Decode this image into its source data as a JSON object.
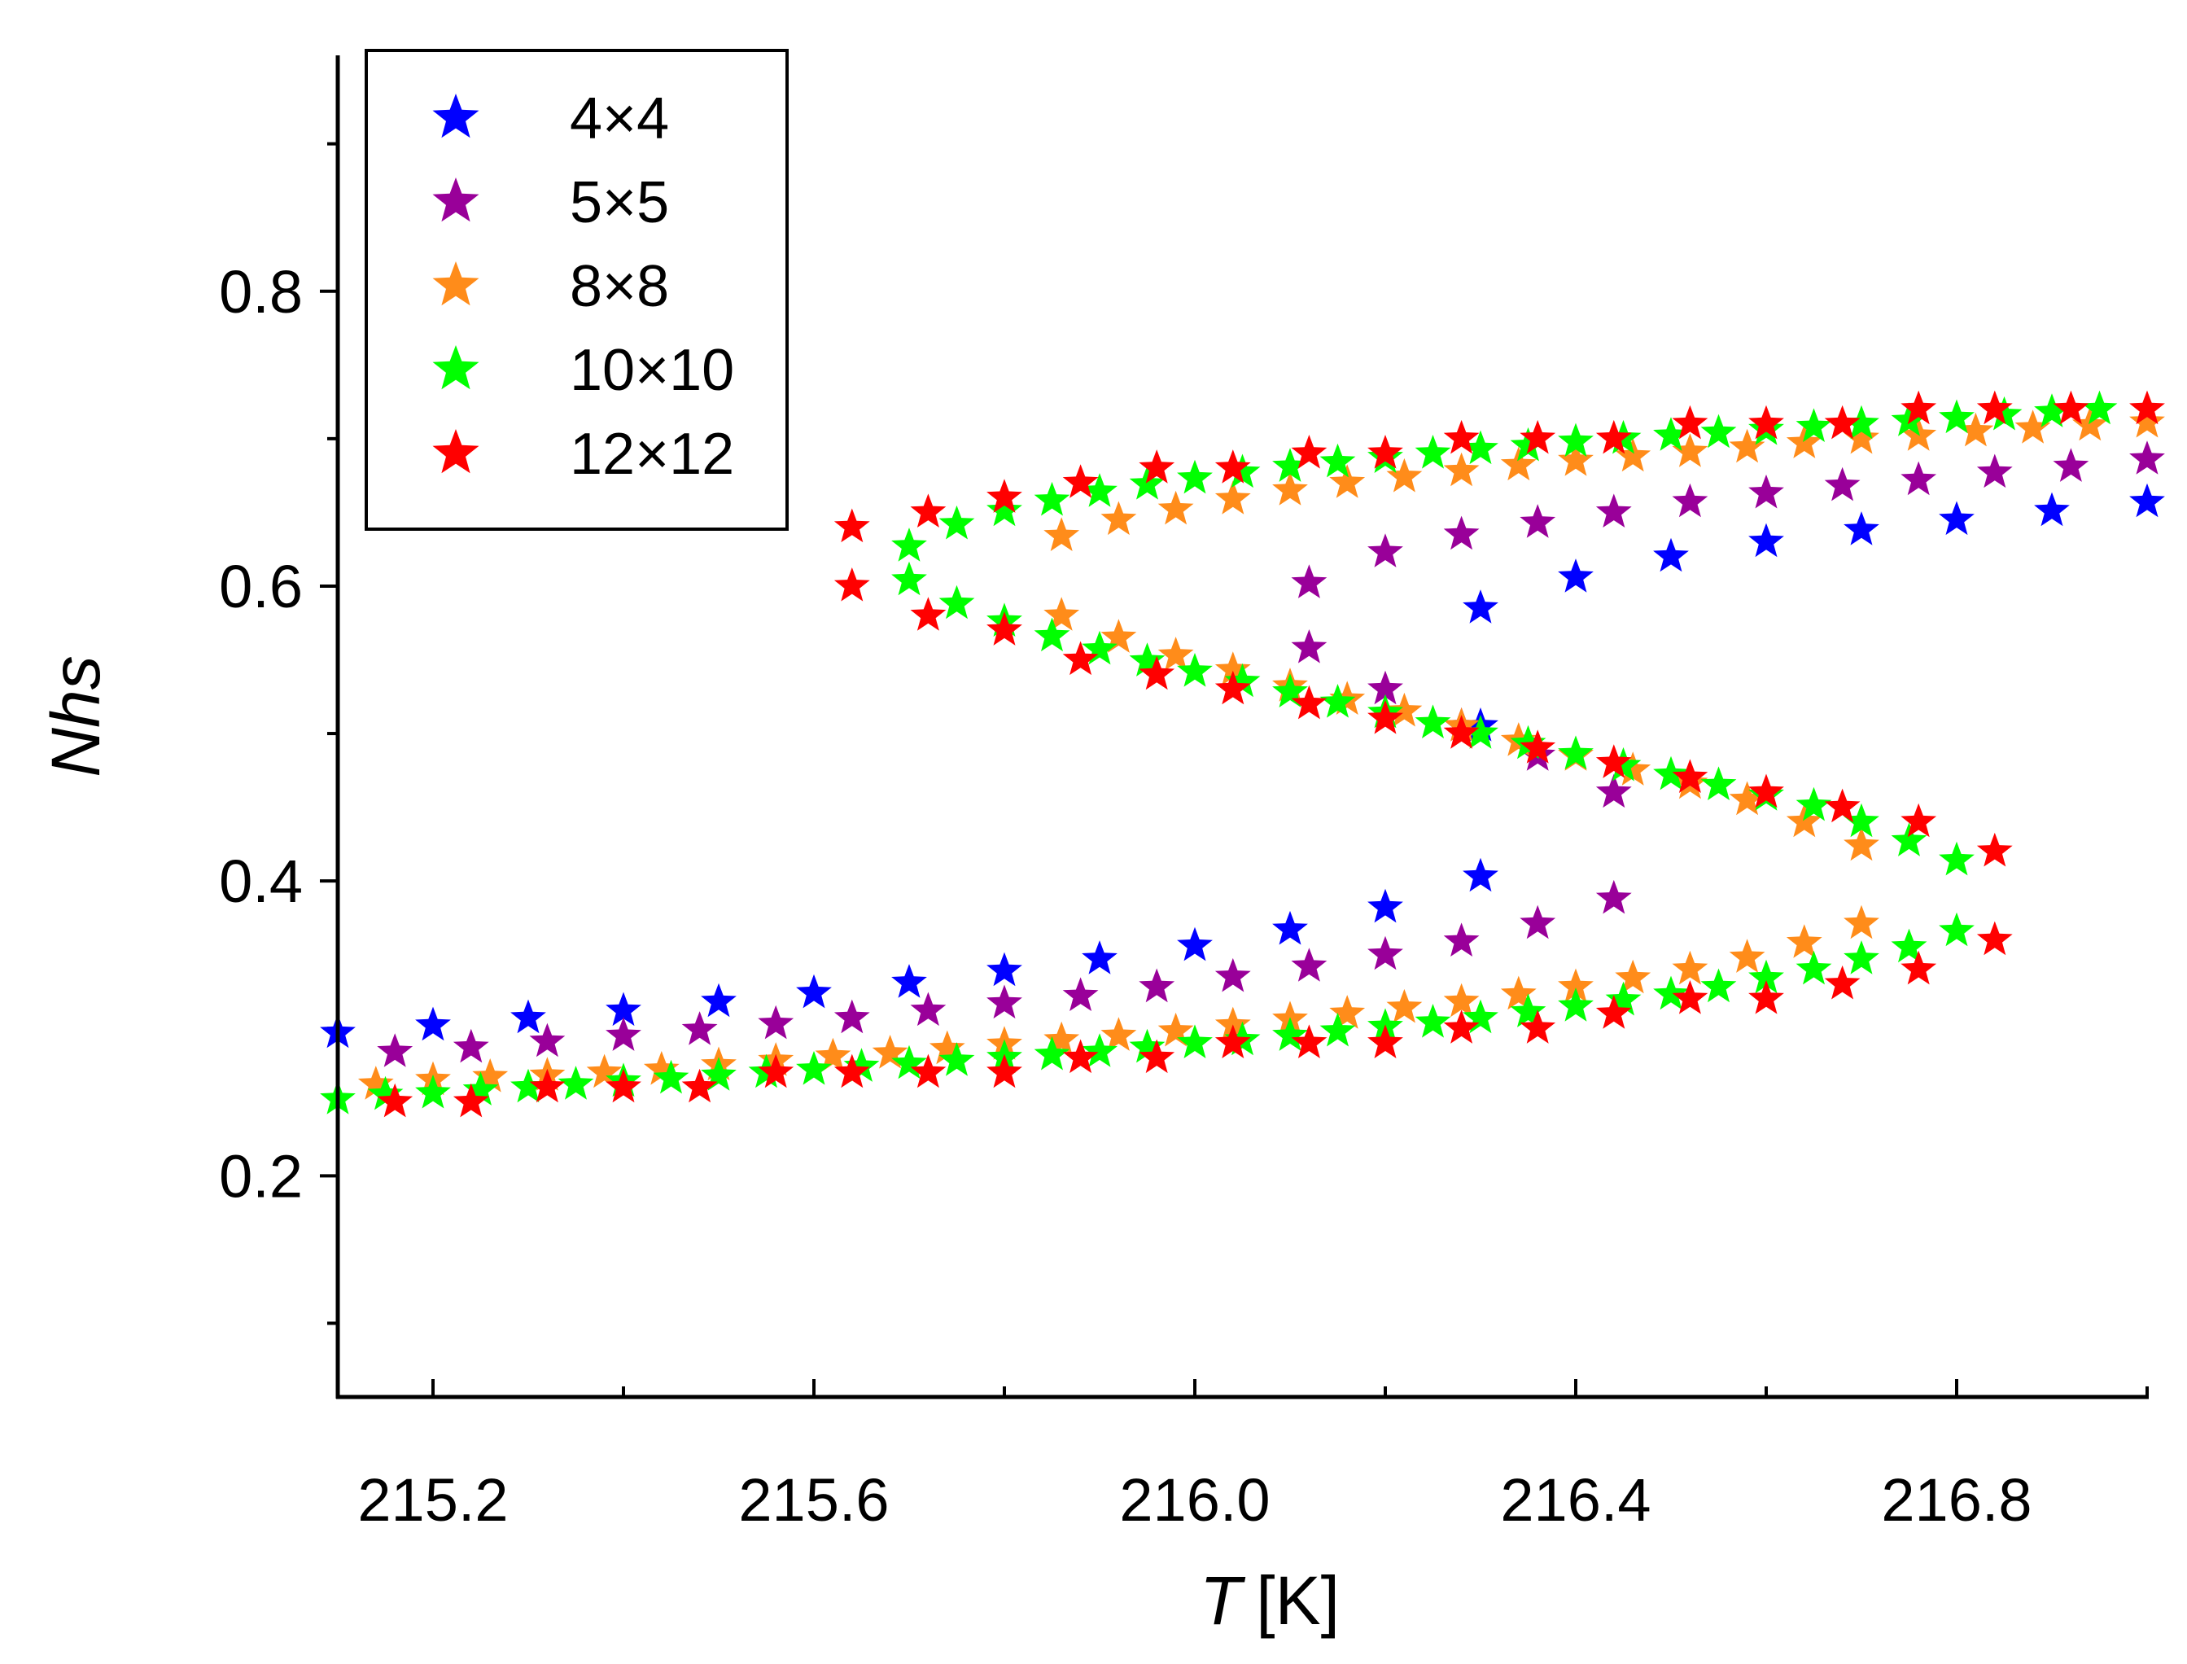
{
  "chart_data": {
    "type": "scatter",
    "xlabel": "T",
    "xunit": "[K]",
    "ylabel": "Nhs",
    "xlim": [
      215.1,
      217.0
    ],
    "ylim": [
      0.05,
      0.96
    ],
    "xticks": [
      "215.2",
      "215.6",
      "216.0",
      "216.4",
      "216.8"
    ],
    "yticks": [
      "0.2",
      "0.4",
      "0.6",
      "0.8"
    ],
    "legend_position": "top-left",
    "series": [
      {
        "name": "4×4",
        "color": "#0000ff",
        "points": [
          [
            215.1,
            0.297
          ],
          [
            215.2,
            0.302
          ],
          [
            215.3,
            0.307
          ],
          [
            215.4,
            0.312
          ],
          [
            215.5,
            0.318
          ],
          [
            215.6,
            0.324
          ],
          [
            215.7,
            0.331
          ],
          [
            215.8,
            0.339
          ],
          [
            215.9,
            0.347
          ],
          [
            216.0,
            0.356
          ],
          [
            216.1,
            0.367
          ],
          [
            216.2,
            0.382
          ],
          [
            216.3,
            0.403
          ],
          [
            216.3,
            0.505
          ],
          [
            216.3,
            0.585
          ],
          [
            216.4,
            0.606
          ],
          [
            216.5,
            0.62
          ],
          [
            216.6,
            0.63
          ],
          [
            216.7,
            0.638
          ],
          [
            216.8,
            0.645
          ],
          [
            216.9,
            0.651
          ],
          [
            217.0,
            0.657
          ]
        ]
      },
      {
        "name": "5×5",
        "color": "#990099",
        "points": [
          [
            215.16,
            0.284
          ],
          [
            215.24,
            0.287
          ],
          [
            215.32,
            0.291
          ],
          [
            215.4,
            0.295
          ],
          [
            215.48,
            0.299
          ],
          [
            215.56,
            0.303
          ],
          [
            215.64,
            0.307
          ],
          [
            215.72,
            0.312
          ],
          [
            215.8,
            0.317
          ],
          [
            215.88,
            0.322
          ],
          [
            215.96,
            0.328
          ],
          [
            216.04,
            0.335
          ],
          [
            216.12,
            0.342
          ],
          [
            216.2,
            0.35
          ],
          [
            216.28,
            0.359
          ],
          [
            216.36,
            0.371
          ],
          [
            216.44,
            0.388
          ],
          [
            216.44,
            0.46
          ],
          [
            216.36,
            0.485
          ],
          [
            216.28,
            0.505
          ],
          [
            216.2,
            0.53
          ],
          [
            216.12,
            0.558
          ],
          [
            216.12,
            0.602
          ],
          [
            216.2,
            0.623
          ],
          [
            216.28,
            0.635
          ],
          [
            216.36,
            0.643
          ],
          [
            216.44,
            0.65
          ],
          [
            216.52,
            0.657
          ],
          [
            216.6,
            0.663
          ],
          [
            216.68,
            0.668
          ],
          [
            216.76,
            0.672
          ],
          [
            216.84,
            0.677
          ],
          [
            216.92,
            0.681
          ],
          [
            217.0,
            0.686
          ]
        ]
      },
      {
        "name": "8×8",
        "color": "#ff8c1a",
        "points": [
          [
            215.14,
            0.262
          ],
          [
            215.2,
            0.265
          ],
          [
            215.26,
            0.267
          ],
          [
            215.32,
            0.268
          ],
          [
            215.38,
            0.27
          ],
          [
            215.44,
            0.272
          ],
          [
            215.5,
            0.275
          ],
          [
            215.56,
            0.278
          ],
          [
            215.62,
            0.281
          ],
          [
            215.68,
            0.283
          ],
          [
            215.74,
            0.286
          ],
          [
            215.8,
            0.289
          ],
          [
            215.86,
            0.292
          ],
          [
            215.92,
            0.295
          ],
          [
            215.98,
            0.298
          ],
          [
            216.04,
            0.302
          ],
          [
            216.1,
            0.306
          ],
          [
            216.16,
            0.31
          ],
          [
            216.22,
            0.314
          ],
          [
            216.28,
            0.318
          ],
          [
            216.34,
            0.323
          ],
          [
            216.4,
            0.328
          ],
          [
            216.46,
            0.334
          ],
          [
            216.52,
            0.34
          ],
          [
            216.58,
            0.348
          ],
          [
            216.64,
            0.358
          ],
          [
            216.7,
            0.371
          ],
          [
            216.7,
            0.424
          ],
          [
            216.64,
            0.44
          ],
          [
            216.58,
            0.455
          ],
          [
            216.52,
            0.466
          ],
          [
            216.46,
            0.475
          ],
          [
            216.4,
            0.485
          ],
          [
            216.34,
            0.495
          ],
          [
            216.28,
            0.505
          ],
          [
            216.22,
            0.515
          ],
          [
            216.16,
            0.523
          ],
          [
            216.1,
            0.532
          ],
          [
            216.04,
            0.543
          ],
          [
            215.98,
            0.553
          ],
          [
            215.92,
            0.565
          ],
          [
            215.86,
            0.58
          ],
          [
            215.86,
            0.634
          ],
          [
            215.92,
            0.645
          ],
          [
            215.98,
            0.652
          ],
          [
            216.04,
            0.659
          ],
          [
            216.1,
            0.665
          ],
          [
            216.16,
            0.67
          ],
          [
            216.22,
            0.674
          ],
          [
            216.28,
            0.678
          ],
          [
            216.34,
            0.682
          ],
          [
            216.4,
            0.685
          ],
          [
            216.46,
            0.688
          ],
          [
            216.52,
            0.691
          ],
          [
            216.58,
            0.694
          ],
          [
            216.64,
            0.697
          ],
          [
            216.7,
            0.7
          ],
          [
            216.76,
            0.702
          ],
          [
            216.82,
            0.705
          ],
          [
            216.88,
            0.707
          ],
          [
            216.94,
            0.709
          ],
          [
            217.0,
            0.711
          ]
        ]
      },
      {
        "name": "10×10",
        "color": "#00ff00",
        "points": [
          [
            215.1,
            0.252
          ],
          [
            215.15,
            0.255
          ],
          [
            215.2,
            0.256
          ],
          [
            215.25,
            0.258
          ],
          [
            215.3,
            0.26
          ],
          [
            215.35,
            0.262
          ],
          [
            215.4,
            0.264
          ],
          [
            215.45,
            0.266
          ],
          [
            215.5,
            0.268
          ],
          [
            215.55,
            0.27
          ],
          [
            215.6,
            0.272
          ],
          [
            215.65,
            0.274
          ],
          [
            215.7,
            0.276
          ],
          [
            215.75,
            0.278
          ],
          [
            215.8,
            0.28
          ],
          [
            215.85,
            0.282
          ],
          [
            215.9,
            0.284
          ],
          [
            215.95,
            0.287
          ],
          [
            216.0,
            0.29
          ],
          [
            216.05,
            0.292
          ],
          [
            216.1,
            0.295
          ],
          [
            216.15,
            0.298
          ],
          [
            216.2,
            0.301
          ],
          [
            216.25,
            0.304
          ],
          [
            216.3,
            0.307
          ],
          [
            216.35,
            0.311
          ],
          [
            216.4,
            0.315
          ],
          [
            216.45,
            0.319
          ],
          [
            216.5,
            0.323
          ],
          [
            216.55,
            0.328
          ],
          [
            216.6,
            0.334
          ],
          [
            216.65,
            0.34
          ],
          [
            216.7,
            0.347
          ],
          [
            216.75,
            0.355
          ],
          [
            216.8,
            0.366
          ],
          [
            216.8,
            0.414
          ],
          [
            216.75,
            0.427
          ],
          [
            216.7,
            0.44
          ],
          [
            216.65,
            0.451
          ],
          [
            216.6,
            0.458
          ],
          [
            216.55,
            0.465
          ],
          [
            216.5,
            0.472
          ],
          [
            216.45,
            0.478
          ],
          [
            216.4,
            0.486
          ],
          [
            216.35,
            0.493
          ],
          [
            216.3,
            0.5
          ],
          [
            216.25,
            0.507
          ],
          [
            216.2,
            0.514
          ],
          [
            216.15,
            0.521
          ],
          [
            216.1,
            0.528
          ],
          [
            216.05,
            0.535
          ],
          [
            216.0,
            0.542
          ],
          [
            215.95,
            0.549
          ],
          [
            215.9,
            0.557
          ],
          [
            215.85,
            0.566
          ],
          [
            215.8,
            0.576
          ],
          [
            215.75,
            0.588
          ],
          [
            215.7,
            0.604
          ],
          [
            215.7,
            0.627
          ],
          [
            215.75,
            0.642
          ],
          [
            215.8,
            0.651
          ],
          [
            215.85,
            0.658
          ],
          [
            215.9,
            0.664
          ],
          [
            215.95,
            0.669
          ],
          [
            216.0,
            0.673
          ],
          [
            216.05,
            0.677
          ],
          [
            216.1,
            0.681
          ],
          [
            216.15,
            0.684
          ],
          [
            216.2,
            0.687
          ],
          [
            216.25,
            0.69
          ],
          [
            216.3,
            0.693
          ],
          [
            216.35,
            0.695
          ],
          [
            216.4,
            0.698
          ],
          [
            216.45,
            0.7
          ],
          [
            216.5,
            0.702
          ],
          [
            216.55,
            0.704
          ],
          [
            216.6,
            0.706
          ],
          [
            216.65,
            0.708
          ],
          [
            216.7,
            0.71
          ],
          [
            216.75,
            0.712
          ],
          [
            216.8,
            0.714
          ],
          [
            216.85,
            0.716
          ],
          [
            216.9,
            0.718
          ],
          [
            216.95,
            0.72
          ]
        ]
      },
      {
        "name": "12×12",
        "color": "#ff0000",
        "points": [
          [
            215.16,
            0.25
          ],
          [
            215.24,
            0.25
          ],
          [
            215.32,
            0.26
          ],
          [
            215.4,
            0.26
          ],
          [
            215.48,
            0.26
          ],
          [
            215.56,
            0.27
          ],
          [
            215.64,
            0.27
          ],
          [
            215.72,
            0.27
          ],
          [
            215.8,
            0.27
          ],
          [
            215.88,
            0.28
          ],
          [
            215.96,
            0.28
          ],
          [
            216.04,
            0.29
          ],
          [
            216.12,
            0.29
          ],
          [
            216.2,
            0.29
          ],
          [
            216.28,
            0.3
          ],
          [
            216.36,
            0.3
          ],
          [
            216.44,
            0.31
          ],
          [
            216.52,
            0.32
          ],
          [
            216.6,
            0.32
          ],
          [
            216.68,
            0.33
          ],
          [
            216.76,
            0.34
          ],
          [
            216.84,
            0.36
          ],
          [
            216.84,
            0.42
          ],
          [
            216.76,
            0.44
          ],
          [
            216.68,
            0.45
          ],
          [
            216.6,
            0.46
          ],
          [
            216.52,
            0.47
          ],
          [
            216.44,
            0.48
          ],
          [
            216.36,
            0.49
          ],
          [
            216.28,
            0.5
          ],
          [
            216.2,
            0.51
          ],
          [
            216.12,
            0.52
          ],
          [
            216.04,
            0.53
          ],
          [
            215.96,
            0.54
          ],
          [
            215.88,
            0.55
          ],
          [
            215.8,
            0.57
          ],
          [
            215.72,
            0.58
          ],
          [
            215.64,
            0.6
          ],
          [
            215.64,
            0.64
          ],
          [
            215.72,
            0.65
          ],
          [
            215.8,
            0.66
          ],
          [
            215.88,
            0.67
          ],
          [
            215.96,
            0.68
          ],
          [
            216.04,
            0.68
          ],
          [
            216.12,
            0.69
          ],
          [
            216.2,
            0.69
          ],
          [
            216.28,
            0.7
          ],
          [
            216.36,
            0.7
          ],
          [
            216.44,
            0.7
          ],
          [
            216.52,
            0.71
          ],
          [
            216.6,
            0.71
          ],
          [
            216.68,
            0.71
          ],
          [
            216.76,
            0.72
          ],
          [
            216.84,
            0.72
          ],
          [
            216.92,
            0.72
          ],
          [
            217.0,
            0.72
          ]
        ]
      }
    ]
  }
}
